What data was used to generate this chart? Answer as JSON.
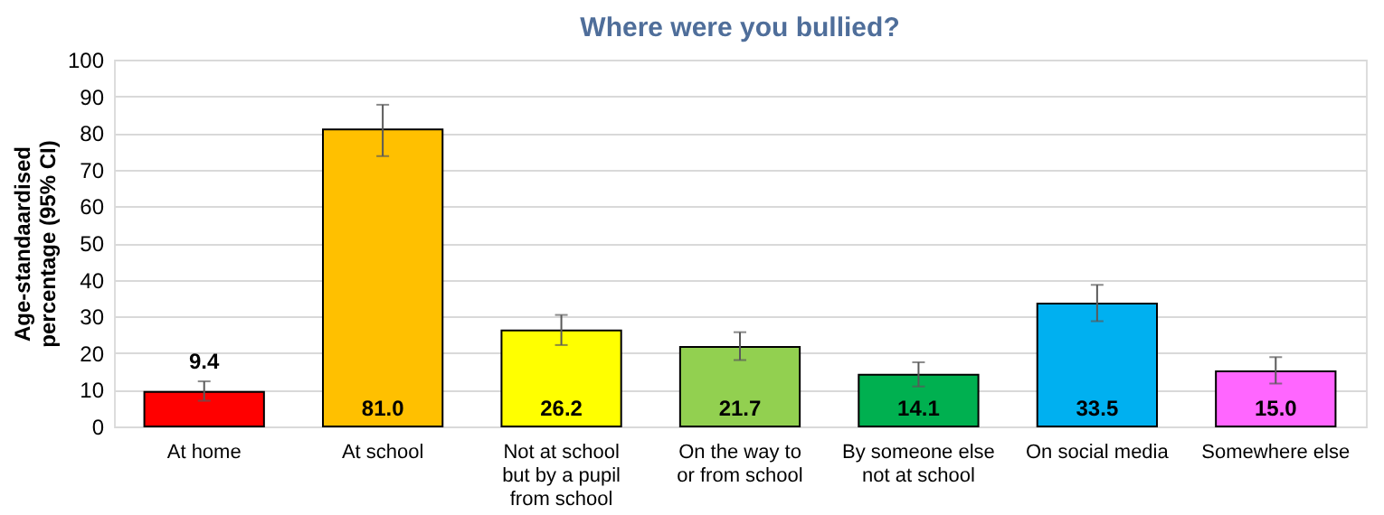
{
  "chart_data": {
    "type": "bar",
    "title": "Where were you bullied?",
    "ylabel": "Age-standaardised percentage (95% CI)",
    "categories": [
      "At home",
      "At school",
      "Not at school but by a pupil from school",
      "On the way to or from school",
      "By someone else not at school",
      "On social media",
      "Somewhere else"
    ],
    "values": [
      9.4,
      81.0,
      26.2,
      21.7,
      14.1,
      33.5,
      15.0
    ],
    "colors": [
      "#ff0000",
      "#ffc000",
      "#ffff00",
      "#92d050",
      "#00b050",
      "#00b0f0",
      "#ff66ff"
    ],
    "errors": [
      [
        7.0,
        12.3
      ],
      [
        73.7,
        87.7
      ],
      [
        22.2,
        30.4
      ],
      [
        18.1,
        25.7
      ],
      [
        10.9,
        17.5
      ],
      [
        28.7,
        38.6
      ],
      [
        11.7,
        18.9
      ]
    ],
    "value_labels": [
      "9.4",
      "81.0",
      "26.2",
      "21.7",
      "14.1",
      "33.5",
      "15.0"
    ],
    "ylim": [
      0,
      100
    ],
    "yticks": [
      0,
      10,
      20,
      30,
      40,
      50,
      60,
      70,
      80,
      90,
      100
    ],
    "grid": "y",
    "legend": false
  }
}
